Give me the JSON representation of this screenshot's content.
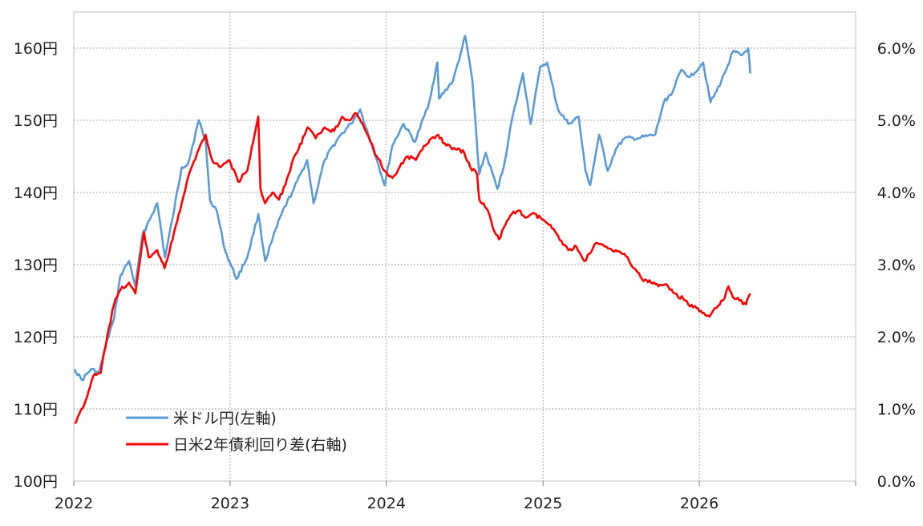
{
  "chart_data": {
    "type": "line",
    "title": "",
    "x_axis": {
      "ticks": [
        "2022",
        "2023",
        "2024",
        "2025",
        "2026"
      ],
      "range": [
        "2022-01-01",
        "2027-01-01"
      ]
    },
    "y_left": {
      "ticks": [
        "100円",
        "110円",
        "120円",
        "130円",
        "140円",
        "150円",
        "160円"
      ],
      "range": [
        100,
        165
      ]
    },
    "y_right": {
      "ticks": [
        "0.0%",
        "1.0%",
        "2.0%",
        "3.0%",
        "4.0%",
        "5.0%",
        "6.0%"
      ],
      "range": [
        0,
        6.5
      ]
    },
    "grid": true,
    "legend_position": "bottom-left",
    "series": [
      {
        "name": "米ドル円(左軸)",
        "axis": "left",
        "color": "#5b9bd5",
        "points": [
          [
            "2022-01-03",
            115.5
          ],
          [
            "2022-01-20",
            114.0
          ],
          [
            "2022-02-10",
            115.5
          ],
          [
            "2022-03-01",
            115.0
          ],
          [
            "2022-03-20",
            119.5
          ],
          [
            "2022-04-05",
            122.5
          ],
          [
            "2022-04-20",
            128.5
          ],
          [
            "2022-05-10",
            130.5
          ],
          [
            "2022-05-25",
            127.0
          ],
          [
            "2022-06-10",
            134.0
          ],
          [
            "2022-06-25",
            136.0
          ],
          [
            "2022-07-15",
            138.5
          ],
          [
            "2022-08-02",
            131.0
          ],
          [
            "2022-08-20",
            136.5
          ],
          [
            "2022-09-10",
            143.5
          ],
          [
            "2022-09-25",
            144.0
          ],
          [
            "2022-10-20",
            150.0
          ],
          [
            "2022-11-05",
            147.0
          ],
          [
            "2022-11-15",
            139.0
          ],
          [
            "2022-12-01",
            137.5
          ],
          [
            "2022-12-20",
            132.0
          ],
          [
            "2023-01-16",
            128.0
          ],
          [
            "2023-02-10",
            131.0
          ],
          [
            "2023-03-08",
            137.0
          ],
          [
            "2023-03-24",
            130.5
          ],
          [
            "2023-04-10",
            133.5
          ],
          [
            "2023-05-01",
            137.0
          ],
          [
            "2023-05-30",
            140.5
          ],
          [
            "2023-06-30",
            144.5
          ],
          [
            "2023-07-15",
            138.5
          ],
          [
            "2023-08-10",
            144.5
          ],
          [
            "2023-09-10",
            147.5
          ],
          [
            "2023-10-10",
            149.5
          ],
          [
            "2023-11-01",
            151.5
          ],
          [
            "2023-11-20",
            148.0
          ],
          [
            "2023-12-10",
            144.5
          ],
          [
            "2023-12-28",
            141.0
          ],
          [
            "2024-01-15",
            146.5
          ],
          [
            "2024-02-10",
            149.5
          ],
          [
            "2024-03-08",
            147.0
          ],
          [
            "2024-04-10",
            152.5
          ],
          [
            "2024-04-29",
            158.0
          ],
          [
            "2024-05-03",
            153.0
          ],
          [
            "2024-06-05",
            155.5
          ],
          [
            "2024-06-26",
            160.0
          ],
          [
            "2024-07-03",
            161.7
          ],
          [
            "2024-07-20",
            155.5
          ],
          [
            "2024-08-05",
            142.5
          ],
          [
            "2024-08-20",
            145.5
          ],
          [
            "2024-09-16",
            140.5
          ],
          [
            "2024-10-01",
            143.5
          ],
          [
            "2024-10-20",
            150.0
          ],
          [
            "2024-11-15",
            156.5
          ],
          [
            "2024-12-03",
            149.5
          ],
          [
            "2024-12-26",
            157.5
          ],
          [
            "2025-01-10",
            158.0
          ],
          [
            "2025-02-05",
            151.5
          ],
          [
            "2025-03-01",
            149.5
          ],
          [
            "2025-03-25",
            150.5
          ],
          [
            "2025-04-10",
            143.0
          ],
          [
            "2025-04-21",
            141.0
          ],
          [
            "2025-05-12",
            148.0
          ],
          [
            "2025-06-01",
            143.0
          ],
          [
            "2025-06-20",
            146.0
          ],
          [
            "2025-07-10",
            147.5
          ],
          [
            "2025-08-10",
            147.5
          ],
          [
            "2025-09-20",
            148.0
          ],
          [
            "2025-10-10",
            152.5
          ],
          [
            "2025-10-31",
            154.0
          ],
          [
            "2025-11-20",
            157.0
          ],
          [
            "2025-12-10",
            156.0
          ],
          [
            "2026-01-10",
            158.0
          ],
          [
            "2026-01-27",
            152.5
          ],
          [
            "2026-02-10",
            154.0
          ],
          [
            "2026-03-01",
            156.5
          ],
          [
            "2026-03-20",
            159.5
          ],
          [
            "2026-04-10",
            159.0
          ],
          [
            "2026-04-25",
            160.0
          ],
          [
            "2026-04-30",
            156.5
          ]
        ]
      },
      {
        "name": "日米2年債利回り差(右軸)",
        "axis": "right",
        "color": "#ff0000",
        "points": [
          [
            "2022-01-03",
            0.8
          ],
          [
            "2022-01-25",
            1.05
          ],
          [
            "2022-02-15",
            1.45
          ],
          [
            "2022-03-05",
            1.5
          ],
          [
            "2022-03-20",
            2.0
          ],
          [
            "2022-04-05",
            2.45
          ],
          [
            "2022-04-20",
            2.65
          ],
          [
            "2022-05-10",
            2.75
          ],
          [
            "2022-05-25",
            2.6
          ],
          [
            "2022-06-14",
            3.45
          ],
          [
            "2022-06-25",
            3.1
          ],
          [
            "2022-07-15",
            3.2
          ],
          [
            "2022-08-01",
            2.95
          ],
          [
            "2022-08-20",
            3.35
          ],
          [
            "2022-09-10",
            3.85
          ],
          [
            "2022-09-30",
            4.3
          ],
          [
            "2022-10-20",
            4.6
          ],
          [
            "2022-11-05",
            4.8
          ],
          [
            "2022-11-20",
            4.45
          ],
          [
            "2022-12-10",
            4.35
          ],
          [
            "2022-12-30",
            4.45
          ],
          [
            "2023-01-20",
            4.15
          ],
          [
            "2023-02-10",
            4.3
          ],
          [
            "2023-02-24",
            4.7
          ],
          [
            "2023-03-08",
            5.05
          ],
          [
            "2023-03-13",
            4.05
          ],
          [
            "2023-03-24",
            3.85
          ],
          [
            "2023-04-10",
            4.0
          ],
          [
            "2023-04-25",
            3.9
          ],
          [
            "2023-05-10",
            4.1
          ],
          [
            "2023-05-25",
            4.4
          ],
          [
            "2023-06-10",
            4.6
          ],
          [
            "2023-07-01",
            4.9
          ],
          [
            "2023-07-20",
            4.75
          ],
          [
            "2023-08-10",
            4.9
          ],
          [
            "2023-09-01",
            4.85
          ],
          [
            "2023-09-20",
            5.05
          ],
          [
            "2023-10-05",
            5.0
          ],
          [
            "2023-10-20",
            5.1
          ],
          [
            "2023-11-10",
            4.9
          ],
          [
            "2023-11-25",
            4.7
          ],
          [
            "2023-12-10",
            4.5
          ],
          [
            "2023-12-28",
            4.3
          ],
          [
            "2024-01-15",
            4.2
          ],
          [
            "2024-02-01",
            4.35
          ],
          [
            "2024-02-20",
            4.5
          ],
          [
            "2024-03-10",
            4.45
          ],
          [
            "2024-04-01",
            4.65
          ],
          [
            "2024-04-15",
            4.75
          ],
          [
            "2024-05-01",
            4.8
          ],
          [
            "2024-05-20",
            4.65
          ],
          [
            "2024-06-10",
            4.6
          ],
          [
            "2024-07-01",
            4.55
          ],
          [
            "2024-07-15",
            4.35
          ],
          [
            "2024-07-31",
            4.25
          ],
          [
            "2024-08-05",
            3.9
          ],
          [
            "2024-08-15",
            3.85
          ],
          [
            "2024-08-25",
            3.75
          ],
          [
            "2024-09-10",
            3.45
          ],
          [
            "2024-09-20",
            3.35
          ],
          [
            "2024-10-05",
            3.55
          ],
          [
            "2024-10-20",
            3.7
          ],
          [
            "2024-11-05",
            3.75
          ],
          [
            "2024-11-20",
            3.65
          ],
          [
            "2024-12-05",
            3.7
          ],
          [
            "2024-12-26",
            3.65
          ],
          [
            "2025-01-15",
            3.55
          ],
          [
            "2025-02-05",
            3.4
          ],
          [
            "2025-03-01",
            3.2
          ],
          [
            "2025-03-20",
            3.25
          ],
          [
            "2025-04-07",
            3.05
          ],
          [
            "2025-04-20",
            3.15
          ],
          [
            "2025-05-05",
            3.3
          ],
          [
            "2025-05-25",
            3.25
          ],
          [
            "2025-06-20",
            3.2
          ],
          [
            "2025-07-10",
            3.15
          ],
          [
            "2025-08-01",
            2.95
          ],
          [
            "2025-08-20",
            2.8
          ],
          [
            "2025-09-10",
            2.75
          ],
          [
            "2025-10-01",
            2.72
          ],
          [
            "2025-10-20",
            2.7
          ],
          [
            "2025-11-05",
            2.6
          ],
          [
            "2025-11-25",
            2.52
          ],
          [
            "2025-12-10",
            2.42
          ],
          [
            "2025-12-25",
            2.4
          ],
          [
            "2026-01-15",
            2.3
          ],
          [
            "2026-01-25",
            2.28
          ],
          [
            "2026-02-10",
            2.4
          ],
          [
            "2026-02-25",
            2.5
          ],
          [
            "2026-03-10",
            2.7
          ],
          [
            "2026-03-20",
            2.55
          ],
          [
            "2026-04-05",
            2.5
          ],
          [
            "2026-04-20",
            2.45
          ],
          [
            "2026-04-30",
            2.6
          ]
        ]
      }
    ]
  }
}
